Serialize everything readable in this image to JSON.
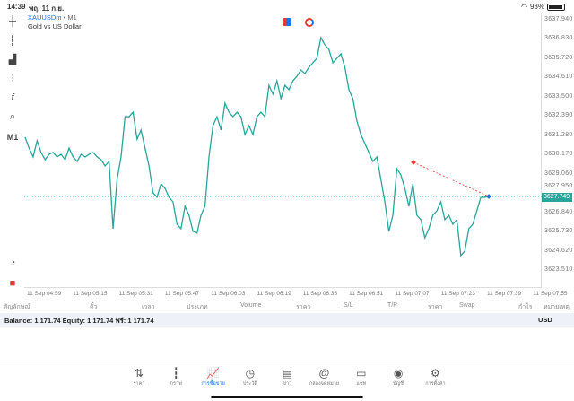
{
  "status": {
    "time": "14:39",
    "date": "พฤ. 11 ก.ย.",
    "battery": "93%",
    "battery_level": 0.93
  },
  "symbol": {
    "name": "XAUUSDm",
    "dot": "•",
    "timeframe": "M1",
    "description": "Gold vs US Dollar"
  },
  "toolbar": {
    "timeframe_label": "M1",
    "icons": [
      "crosshair-icon",
      "candles-icon",
      "bars-icon",
      "indicators-icon",
      "function-icon",
      "objects-icon"
    ]
  },
  "price_ticks": [
    "3637.940",
    "3636.830",
    "3635.720",
    "3634.610",
    "3633.500",
    "3632.390",
    "3631.280",
    "3630.170",
    "3629.060",
    "3627.950",
    "3626.840",
    "3625.730",
    "3624.620",
    "3623.510"
  ],
  "current_price": "3627.749",
  "time_ticks": [
    "11 Sep 04:59",
    "11 Sep 05:15",
    "11 Sep 05:31",
    "11 Sep 05:47",
    "11 Sep 06:03",
    "11 Sep 06:19",
    "11 Sep 06:35",
    "11 Sep 06:51",
    "11 Sep 07:07",
    "11 Sep 07:23",
    "11 Sep 07:39",
    "11 Sep 07:55"
  ],
  "chart_data": {
    "type": "line",
    "ylim": [
      3622.7,
      3638.3
    ],
    "colors": {
      "line": "#26a69a",
      "current": "#26a69a",
      "trade_open": "#e53935",
      "trade_close": "#1a73e8"
    },
    "values": [
      3631.17,
      3630.54,
      3630.03,
      3630.96,
      3630.29,
      3629.87,
      3630.18,
      3630.29,
      3630.03,
      3630.18,
      3629.87,
      3630.54,
      3630.03,
      3629.77,
      3630.18,
      3630.03,
      3630.18,
      3630.29,
      3630.03,
      3629.87,
      3629.51,
      3629.77,
      3625.89,
      3628.73,
      3630.03,
      3632.35,
      3632.35,
      3632.61,
      3631.06,
      3631.58,
      3630.54,
      3629.51,
      3627.96,
      3627.7,
      3628.48,
      3628.22,
      3627.7,
      3627.44,
      3626.15,
      3625.89,
      3627.18,
      3626.67,
      3625.73,
      3625.63,
      3626.67,
      3627.18,
      3630.03,
      3631.84,
      3632.35,
      3631.58,
      3633.13,
      3632.61,
      3632.35,
      3632.61,
      3632.35,
      3631.32,
      3631.84,
      3631.32,
      3632.35,
      3632.61,
      3632.35,
      3634.16,
      3633.65,
      3634.42,
      3633.39,
      3634.16,
      3633.91,
      3634.42,
      3634.68,
      3635.04,
      3634.84,
      3635.2,
      3635.46,
      3635.72,
      3636.91,
      3636.49,
      3636.23,
      3635.46,
      3635.72,
      3635.97,
      3635.2,
      3633.91,
      3633.39,
      3632.1,
      3631.32,
      3630.8,
      3630.29,
      3629.77,
      3630.03,
      3628.73,
      3627.44,
      3625.73,
      3626.67,
      3629.35,
      3628.99,
      3628.22,
      3627.18,
      3628.48,
      3626.67,
      3626.41,
      3625.37,
      3625.89,
      3626.67,
      3626.92,
      3627.44,
      3626.41,
      3626.67,
      3626.15,
      3626.41,
      3624.34,
      3624.6,
      3625.89,
      3626.15,
      3626.92,
      3627.7,
      3627.7,
      3627.75
    ],
    "trade": {
      "open_price": 3629.72,
      "close_price": 3627.75
    }
  },
  "columns": [
    "สัญลักษณ์",
    "ตั๋ว",
    "เวลา",
    "ประเภท",
    "Volume",
    "ราคา",
    "S/L",
    "T/P",
    "ราคา",
    "Swap",
    "กำไร",
    "หมายเหตุ"
  ],
  "balance": {
    "text": "Balance: 1 171.74 Equity: 1 171.74 ฟรี: 1 171.74",
    "currency": "USD"
  },
  "nav": [
    {
      "label": "ราคา",
      "icon": "⇅"
    },
    {
      "label": "กราฟ",
      "icon": "┇"
    },
    {
      "label": "การซื้อขาย",
      "icon": "📈"
    },
    {
      "label": "ประวัติ",
      "icon": "◷"
    },
    {
      "label": "ข่าว",
      "icon": "▤"
    },
    {
      "label": "กล่องจดหมาย",
      "icon": "@"
    },
    {
      "label": "แชท",
      "icon": "▭"
    },
    {
      "label": "บัญชี",
      "icon": "◉"
    },
    {
      "label": "การตั้งค่า",
      "icon": "⚙"
    }
  ]
}
